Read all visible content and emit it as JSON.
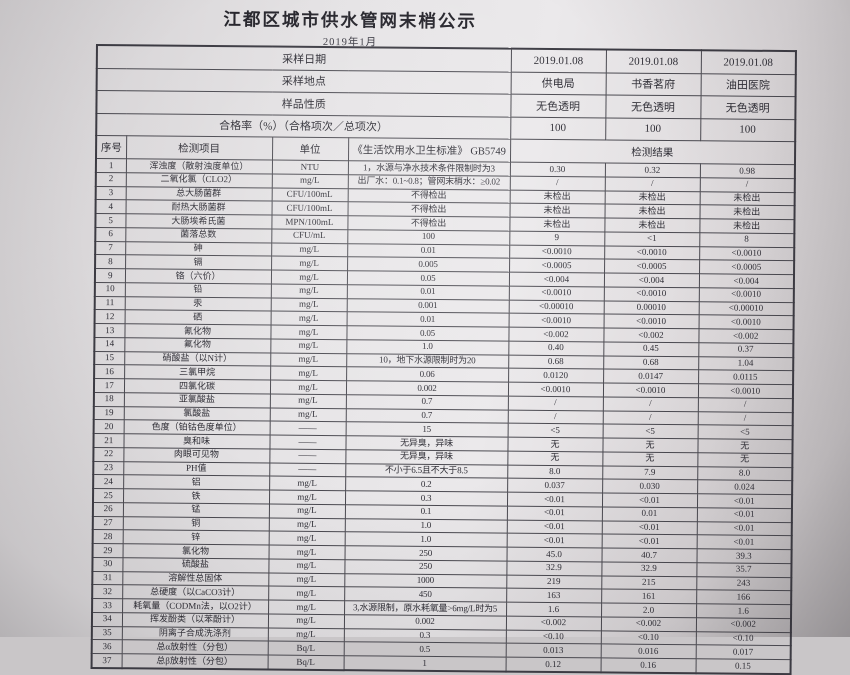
{
  "title": "江都区城市供水管网末梢公示",
  "subtitle": "2019年1月",
  "meta": {
    "rows": [
      {
        "label": "采样日期",
        "values": [
          "2019.01.08",
          "2019.01.08",
          "2019.01.08"
        ]
      },
      {
        "label": "采样地点",
        "values": [
          "供电局",
          "书香茗府",
          "油田医院"
        ]
      },
      {
        "label": "样品性质",
        "values": [
          "无色透明",
          "无色透明",
          "无色透明"
        ]
      },
      {
        "label": "合格率（%）（合格项次／总项次）",
        "values": [
          "100",
          "100",
          "100"
        ]
      }
    ]
  },
  "columns": {
    "seq": "序号",
    "item": "检测项目",
    "unit": "单位",
    "standard": "《生活饮用水卫生标准》 GB5749",
    "results": "检测结果"
  },
  "rows": [
    {
      "seq": "1",
      "item": "浑浊度（散射浊度单位）",
      "unit": "NTU",
      "standard": "1，水源与净水技术条件限制时为3",
      "results": [
        "0.30",
        "0.32",
        "0.98"
      ]
    },
    {
      "seq": "2",
      "item": "二氧化氯（CLO2）",
      "unit": "mg/L",
      "standard": "出厂水：0.1~0.8；管网末梢水：≥0.02",
      "results": [
        "/",
        "/",
        "/"
      ]
    },
    {
      "seq": "3",
      "item": "总大肠菌群",
      "unit": "CFU/100mL",
      "standard": "不得检出",
      "results": [
        "未检出",
        "未检出",
        "未检出"
      ]
    },
    {
      "seq": "4",
      "item": "耐热大肠菌群",
      "unit": "CFU/100mL",
      "standard": "不得检出",
      "results": [
        "未检出",
        "未检出",
        "未检出"
      ]
    },
    {
      "seq": "5",
      "item": "大肠埃希氏菌",
      "unit": "MPN/100mL",
      "standard": "不得检出",
      "results": [
        "未检出",
        "未检出",
        "未检出"
      ]
    },
    {
      "seq": "6",
      "item": "菌落总数",
      "unit": "CFU/mL",
      "standard": "100",
      "results": [
        "9",
        "<1",
        "8"
      ]
    },
    {
      "seq": "7",
      "item": "砷",
      "unit": "mg/L",
      "standard": "0.01",
      "results": [
        "<0.0010",
        "<0.0010",
        "<0.0010"
      ]
    },
    {
      "seq": "8",
      "item": "镉",
      "unit": "mg/L",
      "standard": "0.005",
      "results": [
        "<0.0005",
        "<0.0005",
        "<0.0005"
      ]
    },
    {
      "seq": "9",
      "item": "铬（六价）",
      "unit": "mg/L",
      "standard": "0.05",
      "results": [
        "<0.004",
        "<0.004",
        "<0.004"
      ]
    },
    {
      "seq": "10",
      "item": "铅",
      "unit": "mg/L",
      "standard": "0.01",
      "results": [
        "<0.0010",
        "<0.0010",
        "<0.0010"
      ]
    },
    {
      "seq": "11",
      "item": "汞",
      "unit": "mg/L",
      "standard": "0.001",
      "results": [
        "<0.00010",
        "0.00010",
        "<0.00010"
      ]
    },
    {
      "seq": "12",
      "item": "硒",
      "unit": "mg/L",
      "standard": "0.01",
      "results": [
        "<0.0010",
        "<0.0010",
        "<0.0010"
      ]
    },
    {
      "seq": "13",
      "item": "氰化物",
      "unit": "mg/L",
      "standard": "0.05",
      "results": [
        "<0.002",
        "<0.002",
        "<0.002"
      ]
    },
    {
      "seq": "14",
      "item": "氟化物",
      "unit": "mg/L",
      "standard": "1.0",
      "results": [
        "0.40",
        "0.45",
        "0.37"
      ]
    },
    {
      "seq": "15",
      "item": "硝酸盐（以N计）",
      "unit": "mg/L",
      "standard": "10，地下水源限制时为20",
      "results": [
        "0.68",
        "0.68",
        "1.04"
      ]
    },
    {
      "seq": "16",
      "item": "三氯甲烷",
      "unit": "mg/L",
      "standard": "0.06",
      "results": [
        "0.0120",
        "0.0147",
        "0.0115"
      ]
    },
    {
      "seq": "17",
      "item": "四氯化碳",
      "unit": "mg/L",
      "standard": "0.002",
      "results": [
        "<0.0010",
        "<0.0010",
        "<0.0010"
      ]
    },
    {
      "seq": "18",
      "item": "亚氯酸盐",
      "unit": "mg/L",
      "standard": "0.7",
      "results": [
        "/",
        "/",
        "/"
      ]
    },
    {
      "seq": "19",
      "item": "氯酸盐",
      "unit": "mg/L",
      "standard": "0.7",
      "results": [
        "/",
        "/",
        "/"
      ]
    },
    {
      "seq": "20",
      "item": "色度（铂钴色度单位）",
      "unit": "——",
      "standard": "15",
      "results": [
        "<5",
        "<5",
        "<5"
      ]
    },
    {
      "seq": "21",
      "item": "臭和味",
      "unit": "——",
      "standard": "无异臭，异味",
      "results": [
        "无",
        "无",
        "无"
      ]
    },
    {
      "seq": "22",
      "item": "肉眼可见物",
      "unit": "——",
      "standard": "无异臭，异味",
      "results": [
        "无",
        "无",
        "无"
      ]
    },
    {
      "seq": "23",
      "item": "PH值",
      "unit": "——",
      "standard": "不小于6.5且不大于8.5",
      "results": [
        "8.0",
        "7.9",
        "8.0"
      ]
    },
    {
      "seq": "24",
      "item": "铝",
      "unit": "mg/L",
      "standard": "0.2",
      "results": [
        "0.037",
        "0.030",
        "0.024"
      ]
    },
    {
      "seq": "25",
      "item": "铁",
      "unit": "mg/L",
      "standard": "0.3",
      "results": [
        "<0.01",
        "<0.01",
        "<0.01"
      ]
    },
    {
      "seq": "26",
      "item": "锰",
      "unit": "mg/L",
      "standard": "0.1",
      "results": [
        "<0.01",
        "0.01",
        "<0.01"
      ]
    },
    {
      "seq": "27",
      "item": "铜",
      "unit": "mg/L",
      "standard": "1.0",
      "results": [
        "<0.01",
        "<0.01",
        "<0.01"
      ]
    },
    {
      "seq": "28",
      "item": "锌",
      "unit": "mg/L",
      "standard": "1.0",
      "results": [
        "<0.01",
        "<0.01",
        "<0.01"
      ]
    },
    {
      "seq": "29",
      "item": "氯化物",
      "unit": "mg/L",
      "standard": "250",
      "results": [
        "45.0",
        "40.7",
        "39.3"
      ]
    },
    {
      "seq": "30",
      "item": "硫酸盐",
      "unit": "mg/L",
      "standard": "250",
      "results": [
        "32.9",
        "32.9",
        "35.7"
      ]
    },
    {
      "seq": "31",
      "item": "溶解性总固体",
      "unit": "mg/L",
      "standard": "1000",
      "results": [
        "219",
        "215",
        "243"
      ]
    },
    {
      "seq": "32",
      "item": "总硬度（以CaCO3计）",
      "unit": "mg/L",
      "standard": "450",
      "results": [
        "163",
        "161",
        "166"
      ]
    },
    {
      "seq": "33",
      "item": "耗氧量（CODMn法，以O2计）",
      "unit": "mg/L",
      "standard": "3,水源限制，原水耗氧量>6mg/L时为5",
      "results": [
        "1.6",
        "2.0",
        "1.6"
      ]
    },
    {
      "seq": "34",
      "item": "挥发酚类（以苯酚计）",
      "unit": "mg/L",
      "standard": "0.002",
      "results": [
        "<0.002",
        "<0.002",
        "<0.002"
      ]
    },
    {
      "seq": "35",
      "item": "阴离子合成洗涤剂",
      "unit": "mg/L",
      "standard": "0.3",
      "results": [
        "<0.10",
        "<0.10",
        "<0.10"
      ]
    },
    {
      "seq": "36",
      "item": "总α放射性（分包）",
      "unit": "Bq/L",
      "standard": "0.5",
      "results": [
        "0.013",
        "0.016",
        "0.017"
      ]
    },
    {
      "seq": "37",
      "item": "总β放射性（分包）",
      "unit": "Bq/L",
      "standard": "1",
      "results": [
        "0.12",
        "0.16",
        "0.15"
      ]
    }
  ]
}
